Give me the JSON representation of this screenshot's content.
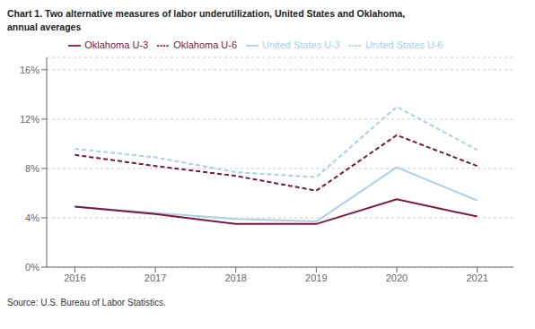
{
  "chart_data": {
    "type": "line",
    "title": "Chart 1. Two alternative measures of labor underutilization, United States and Oklahoma,",
    "subtitle": "annual averages",
    "annotations": [
      "Source: U.S. Bureau of Labor Statistics."
    ],
    "x": [
      2016,
      2017,
      2018,
      2019,
      2020,
      2021
    ],
    "xlim": [
      2015.65,
      2021.45
    ],
    "xticks": [
      2016,
      2017,
      2018,
      2019,
      2020,
      2021
    ],
    "ylim": [
      0,
      17
    ],
    "yticks": [
      {
        "value": 0,
        "label": "0%"
      },
      {
        "value": 4,
        "label": "4%"
      },
      {
        "value": 8,
        "label": "8%"
      },
      {
        "value": 12,
        "label": "12%"
      },
      {
        "value": 16,
        "label": "16%"
      }
    ],
    "grid": true,
    "legend": "top",
    "series": [
      {
        "name": "United States U-3",
        "color": "#a8d0e8",
        "line_style": "solid",
        "values": [
          4.9,
          4.4,
          3.9,
          3.7,
          8.1,
          5.4
        ]
      },
      {
        "name": "United States U-6",
        "color": "#a8d0e8",
        "line_style": "dashed",
        "values": [
          9.6,
          8.9,
          7.7,
          7.3,
          13.0,
          9.5
        ]
      },
      {
        "name": "Oklahoma U-3",
        "color": "#7b1740",
        "line_style": "solid",
        "values": [
          4.9,
          4.3,
          3.5,
          3.5,
          5.5,
          4.1
        ]
      },
      {
        "name": "Oklahoma U-6",
        "color": "#7b1740",
        "line_style": "dashed",
        "values": [
          9.1,
          8.2,
          7.4,
          6.2,
          10.7,
          8.2
        ]
      }
    ]
  }
}
